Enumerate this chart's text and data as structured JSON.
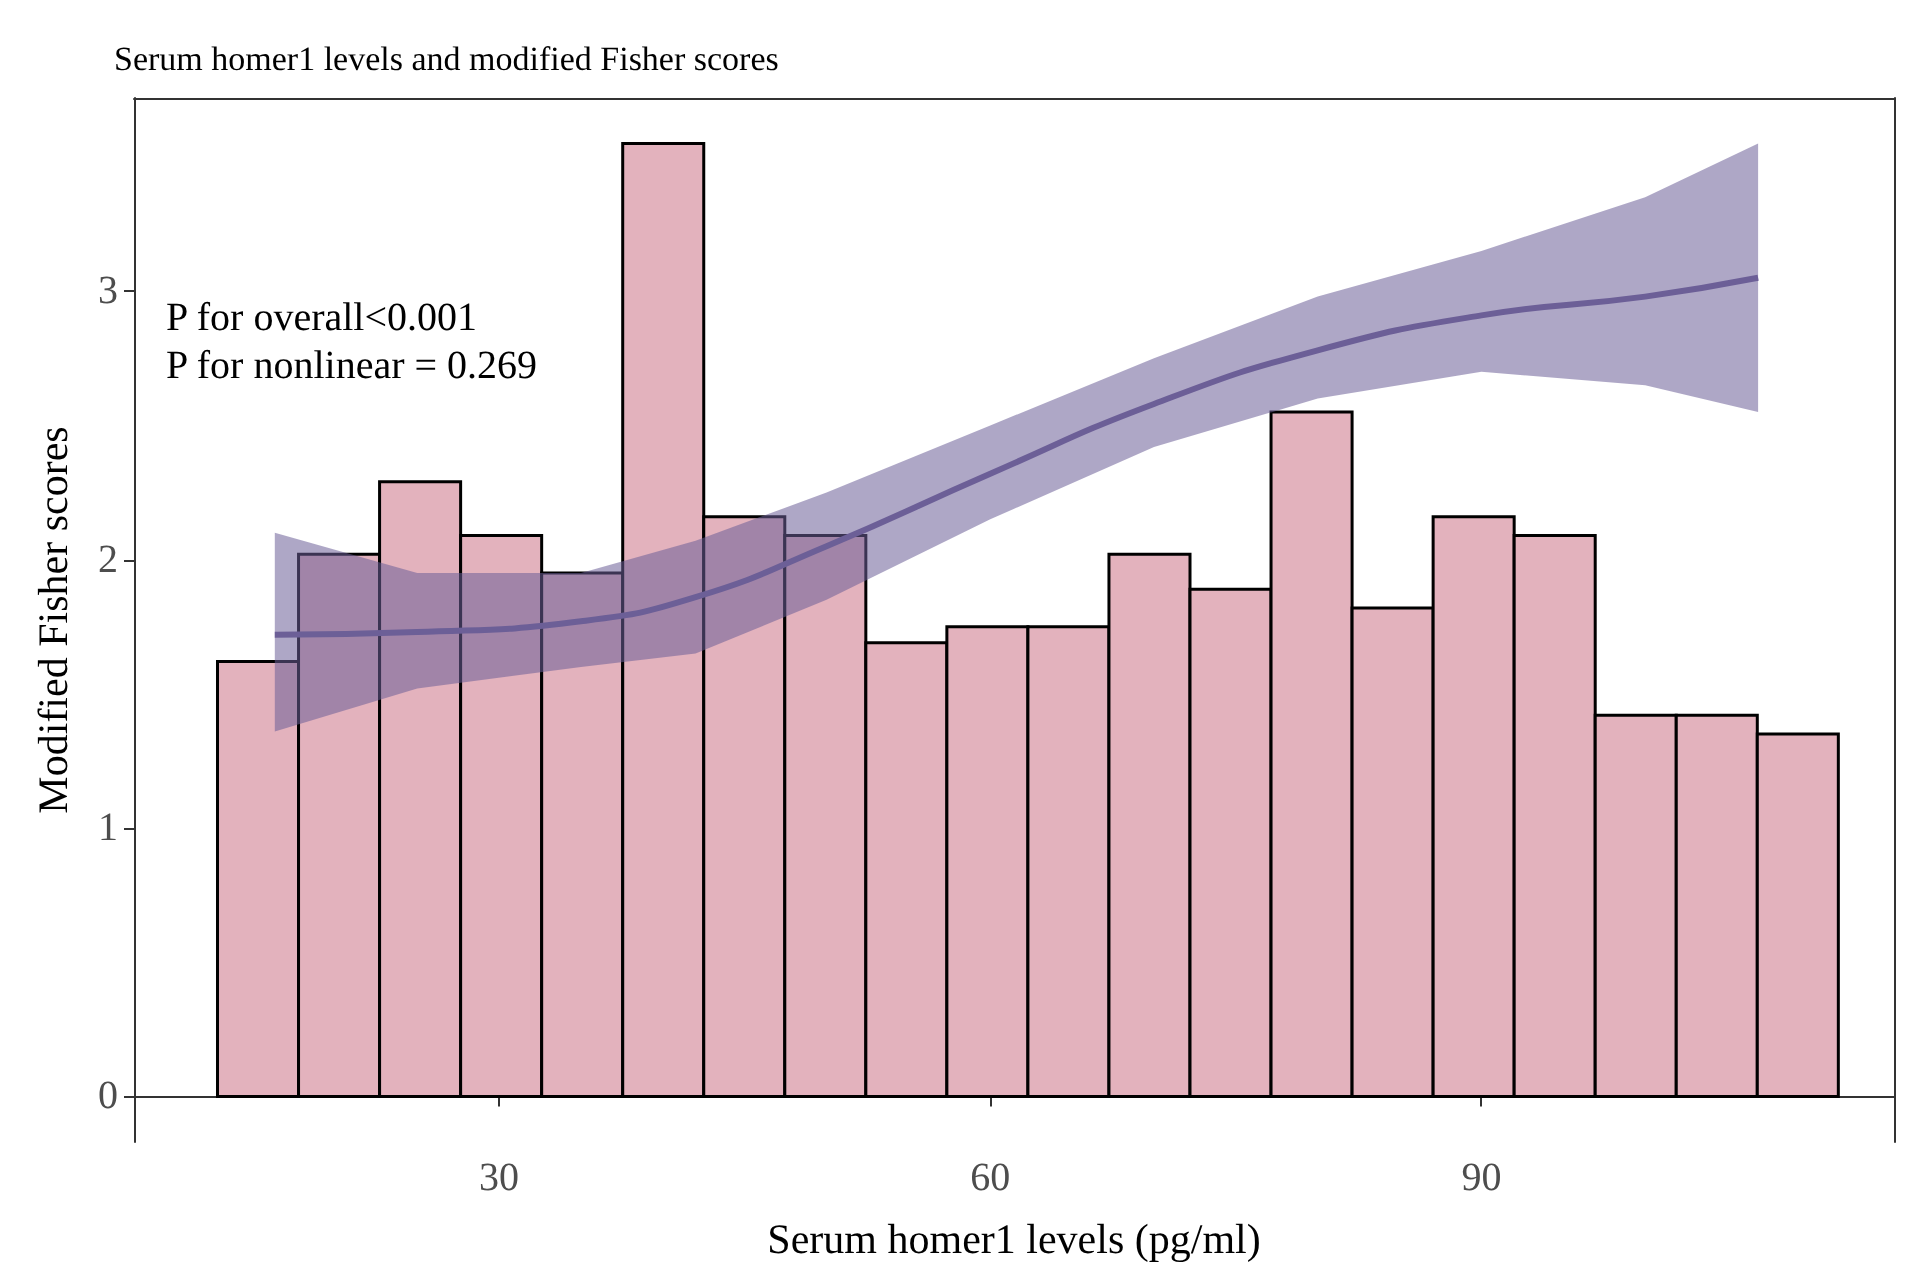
{
  "chart_data": {
    "type": "histogram",
    "title": "Serum homer1 levels and modified Fisher scores",
    "xlabel": "Serum homer1 levels (pg/ml)",
    "ylabel": "Modified Fisher scores",
    "annotations": [
      "P for overall<0.001",
      "P for nonlinear = 0.269"
    ],
    "bins": [
      12.8,
      17.75,
      22.7,
      27.65,
      32.6,
      37.55,
      42.5,
      47.45,
      52.4,
      57.35,
      62.3,
      67.25,
      72.2,
      77.15,
      82.1,
      87.05,
      92.0,
      96.95,
      101.9,
      106.85,
      111.8
    ],
    "values": [
      1.62,
      2.02,
      2.29,
      2.09,
      1.95,
      3.55,
      2.16,
      2.09,
      1.69,
      1.75,
      1.75,
      2.02,
      1.89,
      2.55,
      1.82,
      2.16,
      2.09,
      1.42,
      1.42,
      1.35
    ],
    "color": "#e3b2bd",
    "series": [
      {
        "type": "line",
        "color": "#6c5f97",
        "x": [
          16.3,
          25,
          35,
          42,
          50,
          60,
          70,
          80,
          90,
          100,
          106.9
        ],
        "values": [
          1.72,
          1.73,
          1.77,
          1.86,
          2.05,
          2.32,
          2.58,
          2.78,
          2.91,
          2.98,
          3.05
        ],
        "lower": [
          1.36,
          1.52,
          1.6,
          1.65,
          1.85,
          2.15,
          2.42,
          2.6,
          2.7,
          2.65,
          2.55
        ],
        "upper": [
          2.1,
          1.95,
          1.95,
          2.07,
          2.25,
          2.5,
          2.75,
          2.98,
          3.15,
          3.35,
          3.55
        ]
      }
    ],
    "xlim": [
      7.7,
      115.2
    ],
    "ylim": [
      -0.17,
      3.72
    ],
    "xticks": [
      30,
      60,
      90
    ],
    "yticks": [
      0,
      1,
      2,
      3
    ],
    "grid": false,
    "legend": false
  }
}
